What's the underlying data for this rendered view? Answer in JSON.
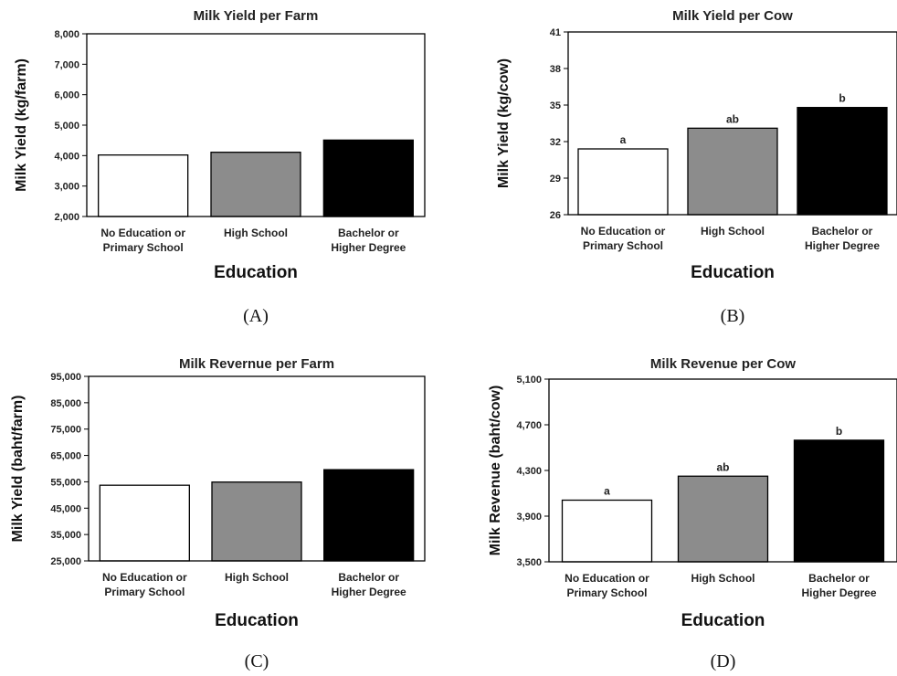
{
  "chart_data": [
    {
      "panel_label": "(A)",
      "type": "bar",
      "title": "Milk Yield per Farm",
      "xlabel": "Education",
      "ylabel": "Milk Yield (kg/farm)",
      "categories": [
        [
          "No Education or",
          "Primary School"
        ],
        [
          "High School"
        ],
        [
          "Bachelor or",
          "Higher Degree"
        ]
      ],
      "values": [
        4020,
        4110,
        4510
      ],
      "bar_colors": [
        "#ffffff",
        "#8c8c8c",
        "#000000"
      ],
      "data_labels": [],
      "ylim": [
        2000,
        8000
      ],
      "yticks": [
        2000,
        3000,
        4000,
        5000,
        6000,
        7000,
        8000
      ],
      "ytick_labels": [
        "2,000",
        "3,000",
        "4,000",
        "5,000",
        "6,000",
        "7,000",
        "8,000"
      ],
      "grid": false
    },
    {
      "panel_label": "(B)",
      "type": "bar",
      "title": "Milk Yield per Cow",
      "xlabel": "Education",
      "ylabel": "Milk Yield (kg/cow)",
      "categories": [
        [
          "No Education or",
          "Primary School"
        ],
        [
          "High School"
        ],
        [
          "Bachelor or",
          "Higher Degree"
        ]
      ],
      "values": [
        31.4,
        33.1,
        34.8
      ],
      "bar_colors": [
        "#ffffff",
        "#8c8c8c",
        "#000000"
      ],
      "data_labels": [
        "a",
        "ab",
        "b"
      ],
      "ylim": [
        26,
        41
      ],
      "yticks": [
        26,
        29,
        32,
        35,
        38,
        41
      ],
      "ytick_labels": [
        "26",
        "29",
        "32",
        "35",
        "38",
        "41"
      ],
      "grid": false
    },
    {
      "panel_label": "(C)",
      "type": "bar",
      "title": "Milk Revernue per Farm",
      "xlabel": "Education",
      "ylabel": "Milk Yield (baht/farm)",
      "categories": [
        [
          "No Education or",
          "Primary School"
        ],
        [
          "High School"
        ],
        [
          "Bachelor or",
          "Higher Degree"
        ]
      ],
      "values": [
        53700,
        54900,
        59600
      ],
      "bar_colors": [
        "#ffffff",
        "#8c8c8c",
        "#000000"
      ],
      "data_labels": [],
      "ylim": [
        25000,
        95000
      ],
      "yticks": [
        25000,
        35000,
        45000,
        55000,
        65000,
        75000,
        85000,
        95000
      ],
      "ytick_labels": [
        "25,000",
        "35,000",
        "45,000",
        "55,000",
        "65,000",
        "75,000",
        "85,000",
        "95,000"
      ],
      "grid": false
    },
    {
      "panel_label": "(D)",
      "type": "bar",
      "title": "Milk Revenue per Cow",
      "xlabel": "Education",
      "ylabel": "Milk Revenue (baht/cow)",
      "categories": [
        [
          "No Education or",
          "Primary School"
        ],
        [
          "High School"
        ],
        [
          "Bachelor or",
          "Higher Degree"
        ]
      ],
      "values": [
        4040,
        4250,
        4565
      ],
      "bar_colors": [
        "#ffffff",
        "#8c8c8c",
        "#000000"
      ],
      "data_labels": [
        "a",
        "ab",
        "b"
      ],
      "ylim": [
        3500,
        5100
      ],
      "yticks": [
        3500,
        3900,
        4300,
        4700,
        5100
      ],
      "ytick_labels": [
        "3,500",
        "3,900",
        "4,300",
        "4,700",
        "5,100"
      ],
      "grid": false
    }
  ]
}
